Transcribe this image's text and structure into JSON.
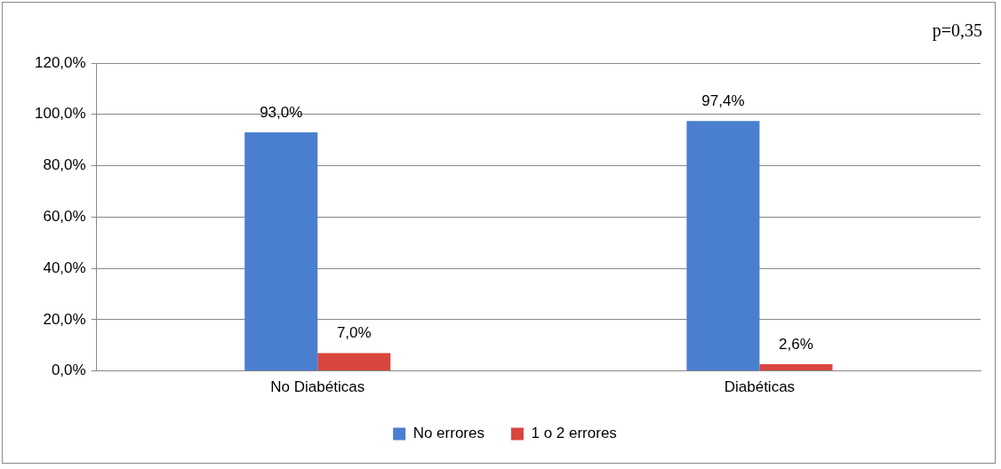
{
  "chart_data": {
    "type": "bar",
    "categories": [
      "No Diabéticas",
      "Diabéticas"
    ],
    "series": [
      {
        "name": "No errores",
        "color": "#4a7fd0",
        "values": [
          93.0,
          97.4
        ],
        "value_labels": [
          "93,0%",
          "97,4%"
        ]
      },
      {
        "name": "1 o 2 errores",
        "color": "#d9453f",
        "values": [
          7.0,
          2.6
        ],
        "value_labels": [
          "7,0%",
          "2,6%"
        ]
      }
    ],
    "ylim": [
      0,
      120
    ],
    "yticks": [
      {
        "value": 0,
        "label": "0,0%"
      },
      {
        "value": 20,
        "label": "20,0%"
      },
      {
        "value": 40,
        "label": "40,0%"
      },
      {
        "value": 60,
        "label": "60,0%"
      },
      {
        "value": 80,
        "label": "80,0%"
      },
      {
        "value": 100,
        "label": "100,0%"
      },
      {
        "value": 120,
        "label": "120,0%"
      }
    ],
    "grid": "y",
    "legend": "bottom",
    "annotations": [
      "p=0,35"
    ]
  }
}
